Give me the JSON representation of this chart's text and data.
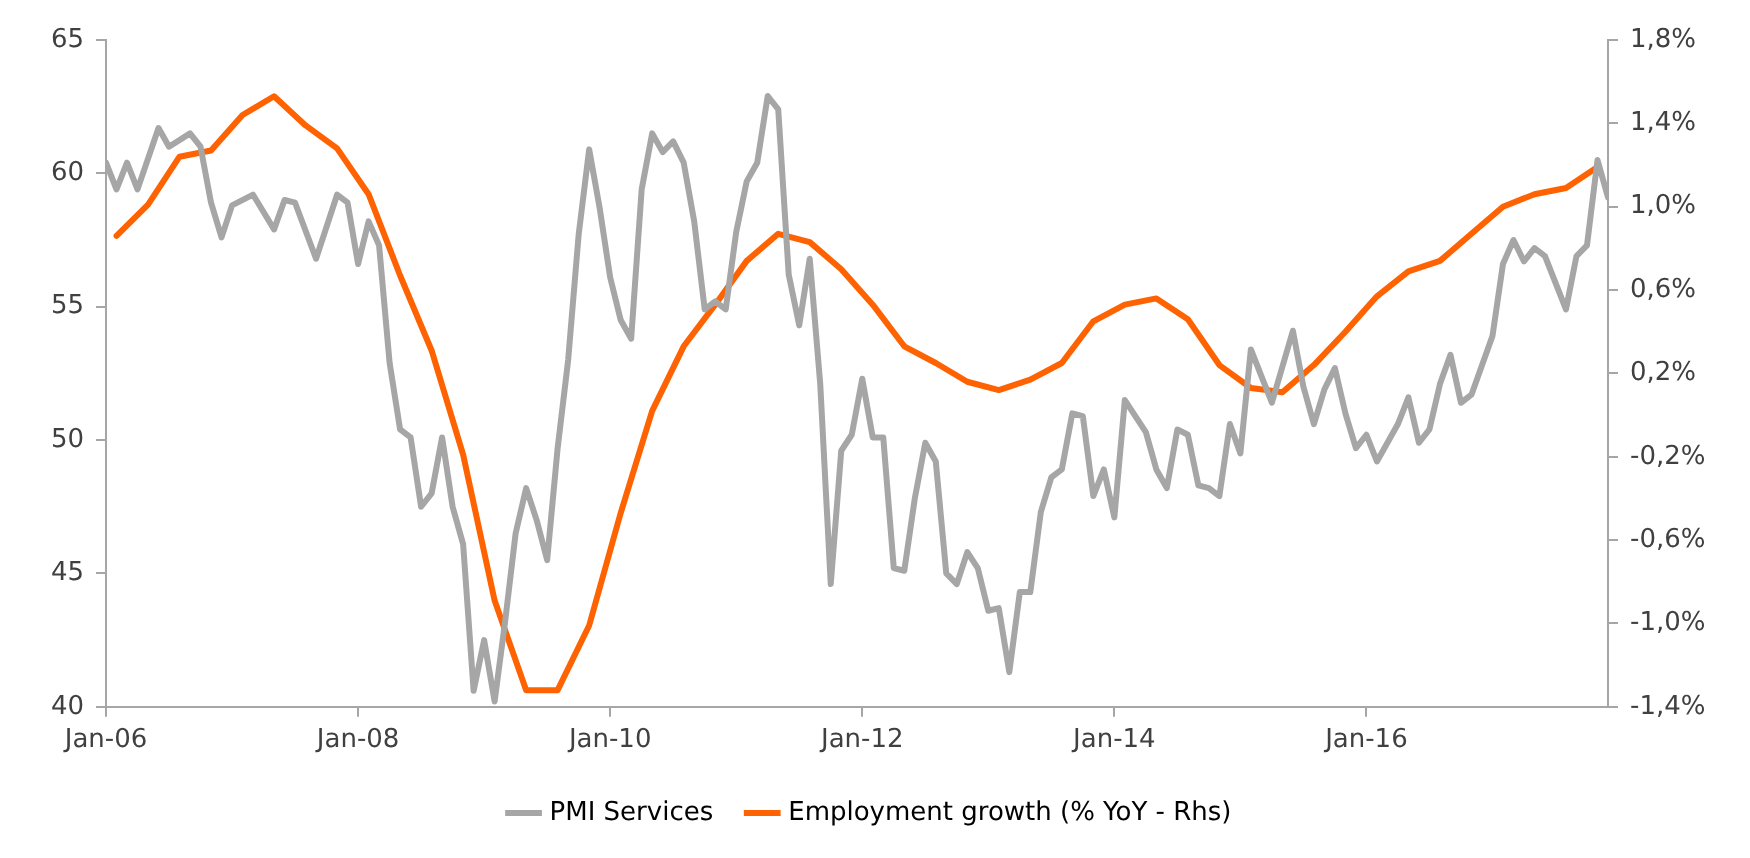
{
  "chart_data": {
    "type": "line",
    "xlim": [
      "2006-01",
      "2017-12"
    ],
    "xticks": [
      {
        "value": "2006-01",
        "label": "Jan-06"
      },
      {
        "value": "2008-01",
        "label": "Jan-08"
      },
      {
        "value": "2010-01",
        "label": "Jan-10"
      },
      {
        "value": "2012-01",
        "label": "Jan-12"
      },
      {
        "value": "2014-01",
        "label": "Jan-14"
      },
      {
        "value": "2016-01",
        "label": "Jan-16"
      }
    ],
    "ylim": [
      40,
      65
    ],
    "yticks": [
      40,
      45,
      50,
      55,
      60,
      65
    ],
    "y2lim": [
      -1.4,
      1.8
    ],
    "y2ticks": [
      {
        "value": -1.4,
        "label": "-1,4%"
      },
      {
        "value": -1.0,
        "label": "-1,0%"
      },
      {
        "value": -0.6,
        "label": "-0,6%"
      },
      {
        "value": -0.2,
        "label": "-0,2%"
      },
      {
        "value": 0.2,
        "label": "0,2%"
      },
      {
        "value": 0.6,
        "label": "0,6%"
      },
      {
        "value": 1.0,
        "label": "1,0%"
      },
      {
        "value": 1.4,
        "label": "1,4%"
      },
      {
        "value": 1.8,
        "label": "1,8%"
      }
    ],
    "legend": "bottom",
    "marker": "none",
    "line_style": "solid",
    "series": [
      {
        "name": "PMI Services",
        "color": "#a6a6a6",
        "x": [
          "2006-01",
          "2006-02",
          "2006-03",
          "2006-04",
          "2006-06",
          "2006-07",
          "2006-09",
          "2006-10",
          "2006-11",
          "2006-12",
          "2007-01",
          "2007-03",
          "2007-05",
          "2007-06",
          "2007-07",
          "2007-09",
          "2007-11",
          "2007-12",
          "2008-01",
          "2008-02",
          "2008-03",
          "2008-04",
          "2008-05",
          "2008-06",
          "2008-07",
          "2008-08",
          "2008-09",
          "2008-10",
          "2008-11",
          "2008-12",
          "2009-01",
          "2009-02",
          "2009-03",
          "2009-04",
          "2009-05",
          "2009-06",
          "2009-07",
          "2009-08",
          "2009-09",
          "2009-10",
          "2009-11",
          "2009-12",
          "2010-01",
          "2010-02",
          "2010-03",
          "2010-04",
          "2010-05",
          "2010-06",
          "2010-07",
          "2010-08",
          "2010-09",
          "2010-10",
          "2010-11",
          "2010-12",
          "2011-01",
          "2011-02",
          "2011-03",
          "2011-04",
          "2011-05",
          "2011-06",
          "2011-07",
          "2011-08",
          "2011-09",
          "2011-10",
          "2011-11",
          "2011-12",
          "2012-01",
          "2012-02",
          "2012-03",
          "2012-04",
          "2012-05",
          "2012-06",
          "2012-07",
          "2012-08",
          "2012-09",
          "2012-10",
          "2012-11",
          "2012-12",
          "2013-01",
          "2013-02",
          "2013-03",
          "2013-04",
          "2013-05",
          "2013-06",
          "2013-07",
          "2013-08",
          "2013-09",
          "2013-10",
          "2013-11",
          "2013-12",
          "2014-01",
          "2014-02",
          "2014-04",
          "2014-05",
          "2014-06",
          "2014-07",
          "2014-08",
          "2014-09",
          "2014-10",
          "2014-11",
          "2014-12",
          "2015-01",
          "2015-02",
          "2015-03",
          "2015-04",
          "2015-06",
          "2015-07",
          "2015-08",
          "2015-09",
          "2015-10",
          "2015-11",
          "2015-12",
          "2016-01",
          "2016-02",
          "2016-04",
          "2016-05",
          "2016-06",
          "2016-07",
          "2016-08",
          "2016-09",
          "2016-10",
          "2016-11",
          "2017-01",
          "2017-02",
          "2017-03",
          "2017-04",
          "2017-05",
          "2017-06",
          "2017-08",
          "2017-09",
          "2017-10",
          "2017-11",
          "2017-12"
        ],
        "values": [
          60.4,
          59.4,
          60.4,
          59.4,
          61.7,
          61.0,
          61.5,
          61.0,
          58.9,
          57.6,
          58.8,
          59.2,
          57.9,
          59.0,
          58.9,
          56.8,
          59.2,
          58.9,
          56.6,
          58.2,
          57.3,
          52.9,
          50.4,
          50.1,
          47.5,
          48.0,
          50.1,
          47.5,
          46.1,
          40.6,
          42.5,
          40.2,
          43.2,
          46.5,
          48.2,
          47.0,
          45.5,
          49.7,
          53.0,
          57.7,
          60.9,
          58.7,
          56.1,
          54.5,
          53.8,
          59.4,
          61.5,
          60.8,
          61.2,
          60.4,
          58.2,
          54.9,
          55.2,
          54.9,
          57.8,
          59.7,
          60.4,
          62.9,
          62.4,
          56.2,
          54.3,
          56.8,
          52.1,
          44.6,
          49.6,
          50.2,
          52.3,
          50.1,
          50.1,
          45.2,
          45.1,
          47.8,
          49.9,
          49.2,
          45.0,
          44.6,
          45.8,
          45.2,
          43.6,
          43.7,
          41.3,
          44.3,
          44.3,
          47.3,
          48.6,
          48.9,
          51.0,
          50.9,
          47.9,
          48.9,
          47.1,
          51.5,
          50.3,
          48.9,
          48.2,
          50.4,
          50.2,
          48.3,
          48.2,
          47.9,
          50.6,
          49.5,
          53.4,
          52.4,
          51.4,
          54.1,
          52.0,
          50.6,
          51.9,
          52.7,
          51.0,
          49.7,
          50.2,
          49.2,
          50.6,
          51.6,
          49.9,
          50.4,
          52.1,
          53.2,
          51.4,
          51.7,
          53.9,
          56.6,
          57.5,
          56.7,
          57.2,
          56.9,
          54.9,
          56.9,
          57.3,
          60.5,
          59.1
        ]
      },
      {
        "name": "Employment growth (% YoY - Rhs)",
        "color": "#ff6200",
        "axis": "y2",
        "x": [
          "2006-02",
          "2006-05",
          "2006-08",
          "2006-11",
          "2007-02",
          "2007-05",
          "2007-08",
          "2007-11",
          "2008-02",
          "2008-05",
          "2008-08",
          "2008-11",
          "2009-02",
          "2009-05",
          "2009-08",
          "2009-11",
          "2010-02",
          "2010-05",
          "2010-08",
          "2010-11",
          "2011-02",
          "2011-05",
          "2011-08",
          "2011-11",
          "2012-02",
          "2012-05",
          "2012-08",
          "2012-11",
          "2013-02",
          "2013-05",
          "2013-08",
          "2013-11",
          "2014-02",
          "2014-05",
          "2014-08",
          "2014-11",
          "2015-02",
          "2015-05",
          "2015-08",
          "2015-11",
          "2016-02",
          "2016-05",
          "2016-08",
          "2016-11",
          "2017-02",
          "2017-05",
          "2017-08",
          "2017-11"
        ],
        "values": [
          0.86,
          1.01,
          1.24,
          1.27,
          1.44,
          1.53,
          1.39,
          1.28,
          1.06,
          0.67,
          0.31,
          -0.19,
          -0.89,
          -1.32,
          -1.32,
          -1.01,
          -0.47,
          0.02,
          0.33,
          0.53,
          0.74,
          0.87,
          0.83,
          0.7,
          0.53,
          0.33,
          0.25,
          0.16,
          0.12,
          0.17,
          0.25,
          0.45,
          0.53,
          0.56,
          0.46,
          0.24,
          0.13,
          0.11,
          0.24,
          0.4,
          0.57,
          0.69,
          0.74,
          0.87,
          1.0,
          1.06,
          1.09,
          1.19
        ]
      }
    ]
  }
}
